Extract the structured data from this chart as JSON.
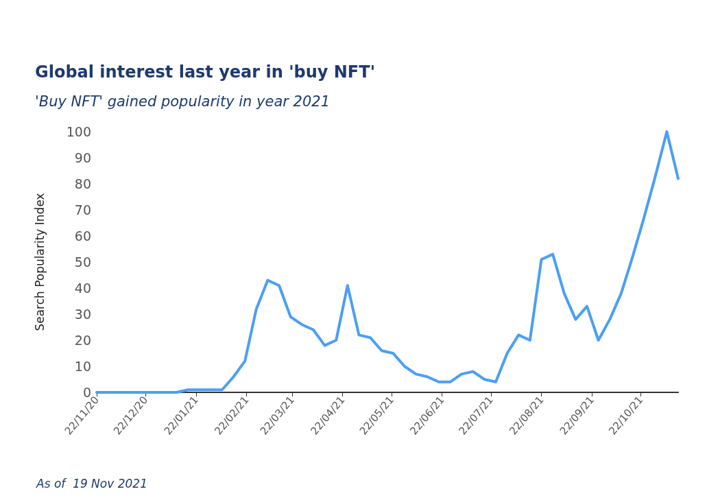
{
  "chart_data": {
    "type": "line",
    "title": "Global interest last year in 'buy NFT'",
    "subtitle": "'Buy NFT' gained popularity in year 2021",
    "ylabel": "Search Popularity Index",
    "annotations": [
      "As of  19 Nov 2021"
    ],
    "x": [
      "2020-11-22",
      "2020-11-29",
      "2020-12-06",
      "2020-12-13",
      "2020-12-20",
      "2020-12-27",
      "2021-01-03",
      "2021-01-10",
      "2021-01-17",
      "2021-01-24",
      "2021-01-31",
      "2021-02-07",
      "2021-02-14",
      "2021-02-21",
      "2021-02-28",
      "2021-03-07",
      "2021-03-14",
      "2021-03-21",
      "2021-03-28",
      "2021-04-04",
      "2021-04-11",
      "2021-04-18",
      "2021-04-25",
      "2021-05-02",
      "2021-05-09",
      "2021-05-16",
      "2021-05-23",
      "2021-05-30",
      "2021-06-06",
      "2021-06-13",
      "2021-06-20",
      "2021-06-27",
      "2021-07-04",
      "2021-07-11",
      "2021-07-18",
      "2021-07-25",
      "2021-08-01",
      "2021-08-08",
      "2021-08-15",
      "2021-08-22",
      "2021-08-29",
      "2021-09-05",
      "2021-09-12",
      "2021-09-19",
      "2021-09-26",
      "2021-10-03",
      "2021-10-10",
      "2021-10-17",
      "2021-10-24",
      "2021-10-31",
      "2021-11-07",
      "2021-11-14"
    ],
    "series": [
      {
        "color": "#4a9ff5",
        "values": [
          0,
          0,
          0,
          0,
          0,
          0,
          0,
          0,
          1,
          1,
          1,
          1,
          6,
          12,
          32,
          43,
          41,
          29,
          26,
          24,
          18,
          20,
          41,
          22,
          21,
          16,
          15,
          10,
          7,
          6,
          4,
          4,
          7,
          8,
          5,
          4,
          15,
          22,
          20,
          51,
          53,
          38,
          28,
          33,
          20,
          28,
          38,
          52,
          67,
          83,
          100,
          82
        ]
      }
    ],
    "xlim": [
      "2020-11-22",
      "2021-11-14"
    ],
    "xticks": [
      {
        "value": "2020-11-22",
        "label": "22/11/20"
      },
      {
        "value": "2020-12-22",
        "label": "22/12/20"
      },
      {
        "value": "2021-01-22",
        "label": "22/01/21"
      },
      {
        "value": "2021-02-22",
        "label": "22/02/21"
      },
      {
        "value": "2021-03-22",
        "label": "22/03/21"
      },
      {
        "value": "2021-04-22",
        "label": "22/04/21"
      },
      {
        "value": "2021-05-22",
        "label": "22/05/21"
      },
      {
        "value": "2021-06-22",
        "label": "22/06/21"
      },
      {
        "value": "2021-07-22",
        "label": "22/07/21"
      },
      {
        "value": "2021-08-22",
        "label": "22/08/21"
      },
      {
        "value": "2021-09-22",
        "label": "22/09/21"
      },
      {
        "value": "2021-10-22",
        "label": "22/10/21"
      }
    ],
    "ylim": [
      0,
      100
    ],
    "yticks": [
      0,
      10,
      20,
      30,
      40,
      50,
      60,
      70,
      80,
      90,
      100
    ],
    "grid": false,
    "marker": "none",
    "line_style": "solid"
  }
}
